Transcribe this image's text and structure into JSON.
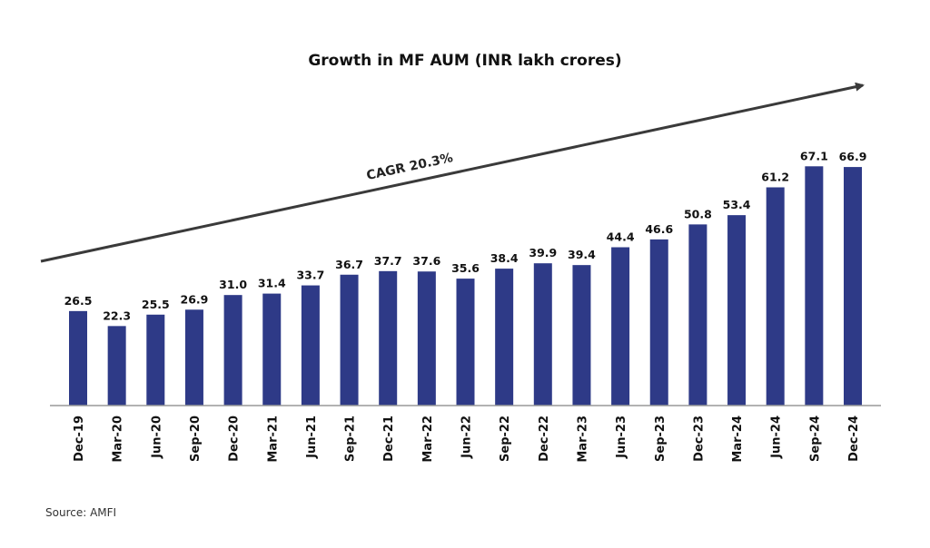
{
  "chart_data": {
    "type": "bar",
    "title": "Growth in MF AUM (INR lakh crores)",
    "categories": [
      "Dec-19",
      "Mar-20",
      "Jun-20",
      "Sep-20",
      "Dec-20",
      "Mar-21",
      "Jun-21",
      "Sep-21",
      "Dec-21",
      "Mar-22",
      "Jun-22",
      "Sep-22",
      "Dec-22",
      "Mar-23",
      "Jun-23",
      "Sep-23",
      "Dec-23",
      "Mar-24",
      "Jun-24",
      "Sep-24",
      "Dec-24"
    ],
    "values": [
      26.5,
      22.3,
      25.5,
      26.9,
      31.0,
      31.4,
      33.7,
      36.7,
      37.7,
      37.6,
      35.6,
      38.4,
      39.9,
      39.4,
      44.4,
      46.6,
      50.8,
      53.4,
      61.2,
      67.1,
      66.9
    ],
    "value_labels": [
      "26.5",
      "22.3",
      "25.5",
      "26.9",
      "31.0",
      "31.4",
      "33.7",
      "36.7",
      "37.7",
      "37.6",
      "35.6",
      "38.4",
      "39.9",
      "39.4",
      "44.4",
      "46.6",
      "50.8",
      "53.4",
      "61.2",
      "67.1",
      "66.9"
    ],
    "annotation": "CAGR 20.3%",
    "xlabel": "",
    "ylabel": "",
    "grid": false,
    "bar_color": "#2e3a87",
    "arrow_color": "#3a3a3a"
  },
  "source": "Source: AMFI"
}
